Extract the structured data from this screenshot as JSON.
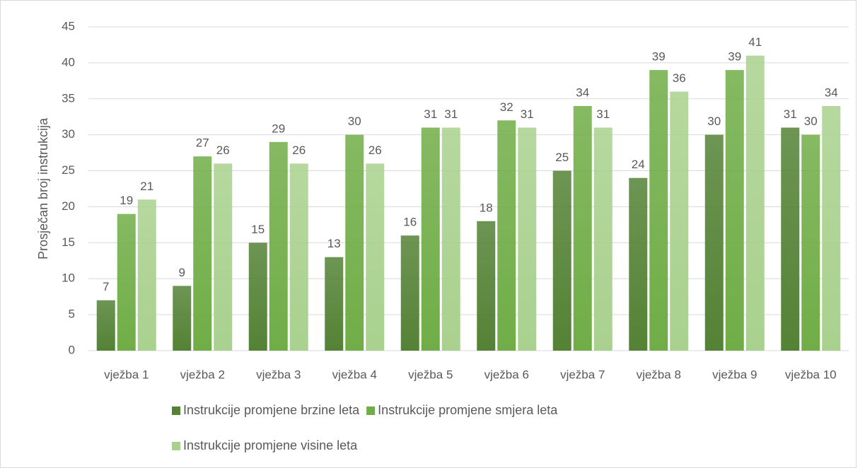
{
  "chart_data": {
    "type": "bar",
    "ylabel": "Prosječan broj instrukcija",
    "categories": [
      "vježba 1",
      "vježba 2",
      "vježba 3",
      "vježba 4",
      "vježba 5",
      "vježba 6",
      "vježba 7",
      "vježba 8",
      "vježba 9",
      "vježba 10"
    ],
    "series": [
      {
        "name": "Instrukcije promjene brzine leta",
        "color": "#548235",
        "values": [
          7,
          9,
          15,
          13,
          16,
          18,
          25,
          24,
          30,
          31
        ]
      },
      {
        "name": "Instrukcije promjene smjera leta",
        "color": "#70ad47",
        "values": [
          19,
          27,
          29,
          30,
          31,
          32,
          34,
          39,
          39,
          30
        ]
      },
      {
        "name": "Instrukcije promjene visine leta",
        "color": "#a9d18e",
        "values": [
          21,
          26,
          26,
          26,
          31,
          31,
          31,
          36,
          41,
          34
        ]
      }
    ],
    "ylim": [
      0,
      45
    ],
    "yticks": [
      0,
      5,
      10,
      15,
      20,
      25,
      30,
      35,
      40,
      45
    ],
    "grid": true,
    "legend": "bottom"
  }
}
